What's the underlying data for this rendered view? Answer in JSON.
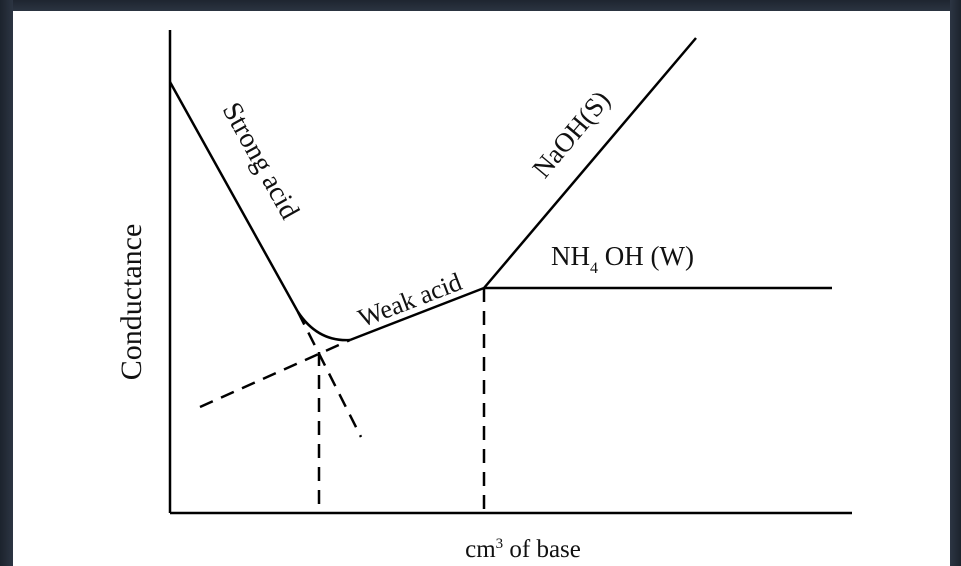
{
  "y_axis_label": "Conductance",
  "x_axis_label_prefix": "cm",
  "x_axis_label_sup": "3",
  "x_axis_label_suffix": " of base",
  "curves": {
    "strong_acid": "Strong acid",
    "weak_acid": "Weak acid",
    "naoh_prefix": "NaOH(S)",
    "nh4oh_nh": "NH",
    "nh4oh_sub": "4",
    "nh4oh_rest": " OH (W)"
  }
}
